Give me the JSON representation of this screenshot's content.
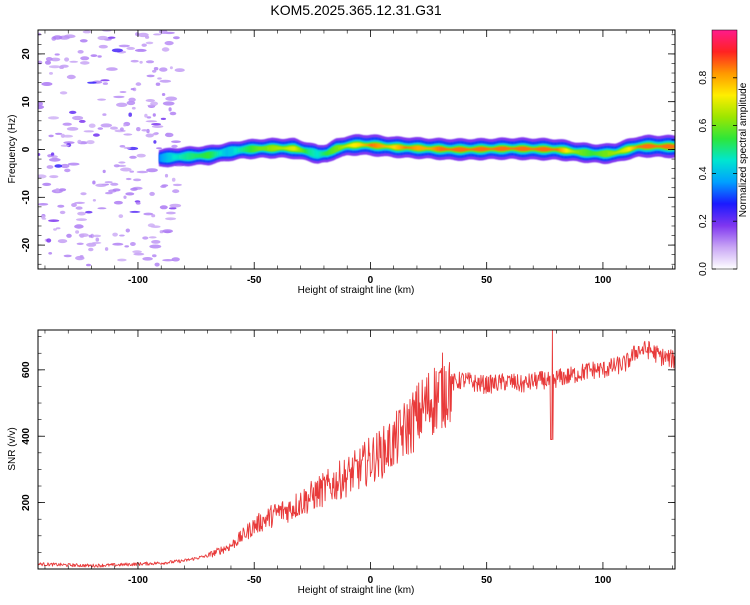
{
  "chart_data": [
    {
      "type": "heatmap",
      "title": "KOM5.2025.365.12.31.G31",
      "xlabel": "Height of straight line (km)",
      "ylabel": "Frequency (Hz)",
      "xlim": [
        -143,
        131
      ],
      "ylim": [
        -25,
        25
      ],
      "xticks": [
        -100,
        -50,
        0,
        50,
        100
      ],
      "xtick_labels": [
        "-100",
        "-50",
        "0",
        "50",
        "100"
      ],
      "yticks": [
        -20,
        -10,
        0,
        10,
        20
      ],
      "ytick_labels": [
        "-20",
        "-10",
        "0",
        "10",
        "20"
      ],
      "colorbar": {
        "label": "Normalized spectral amplitude",
        "range": [
          0,
          1
        ],
        "ticks": [
          0,
          0.2,
          0.4,
          0.6,
          0.8
        ],
        "tick_labels": [
          "0.0",
          "0.2",
          "0.4",
          "0.6",
          "0.8"
        ],
        "colors": [
          "#ffffff",
          "#c9a6f5",
          "#7f36f0",
          "#1a1aff",
          "#00a0ff",
          "#00e6d0",
          "#2ee63a",
          "#9de600",
          "#ffee00",
          "#ff9900",
          "#ff2222",
          "#ff1a8c"
        ]
      },
      "noise_region": {
        "x": [
          -143,
          -82
        ],
        "y": [
          -25,
          25
        ],
        "amplitude": 0.12
      },
      "ridge": {
        "x": [
          -91,
          -85,
          -78,
          -70,
          -62,
          -55,
          -48,
          -40,
          -33,
          -27,
          -23,
          -19,
          -15,
          -10,
          -5,
          0,
          5,
          10,
          15,
          20,
          25,
          30,
          35,
          40,
          50,
          60,
          70,
          80,
          85,
          90,
          95,
          100,
          105,
          110,
          115,
          120,
          131
        ],
        "frequency": [
          -1.8,
          -1.6,
          -1.4,
          -1.2,
          -0.5,
          0.0,
          0.2,
          0.3,
          0.2,
          -0.5,
          -1.0,
          -0.8,
          0.2,
          0.8,
          1.0,
          0.9,
          0.7,
          0.5,
          0.4,
          0.3,
          0.2,
          0.1,
          0.0,
          0.0,
          0.1,
          0.2,
          0.1,
          0.0,
          -0.3,
          -0.6,
          -0.8,
          -0.9,
          -0.7,
          0.0,
          0.6,
          0.7,
          0.6
        ],
        "amplitude": [
          0.35,
          0.45,
          0.5,
          0.55,
          0.4,
          0.5,
          0.6,
          0.65,
          0.7,
          0.5,
          0.45,
          0.55,
          0.6,
          0.7,
          0.75,
          0.85,
          0.8,
          0.75,
          0.85,
          0.8,
          0.8,
          0.85,
          0.9,
          0.9,
          0.85,
          0.9,
          0.95,
          0.85,
          0.7,
          0.6,
          0.55,
          0.6,
          0.65,
          0.7,
          0.85,
          0.95,
          1.0
        ]
      }
    },
    {
      "type": "line",
      "xlabel": "Height of straight line (km)",
      "ylabel": "SNR (v/v)",
      "xlim": [
        -143,
        131
      ],
      "ylim": [
        0,
        720
      ],
      "xticks": [
        -100,
        -50,
        0,
        50,
        100
      ],
      "xtick_labels": [
        "-100",
        "-50",
        "0",
        "50",
        "100"
      ],
      "yticks": [
        200,
        400,
        600
      ],
      "ytick_labels": [
        "200",
        "400",
        "600"
      ],
      "line_color": "#e83a3a",
      "series": [
        {
          "name": "SNR",
          "x": [
            -143,
            -130,
            -120,
            -110,
            -100,
            -90,
            -80,
            -70,
            -65,
            -60,
            -55,
            -50,
            -45,
            -40,
            -35,
            -30,
            -25,
            -20,
            -15,
            -10,
            -5,
            0,
            5,
            10,
            15,
            20,
            25,
            30,
            35,
            40,
            45,
            50,
            55,
            60,
            65,
            70,
            75,
            78,
            80,
            85,
            90,
            95,
            100,
            105,
            110,
            115,
            120,
            125,
            131
          ],
          "values": [
            15,
            12,
            10,
            12,
            15,
            18,
            25,
            40,
            55,
            70,
            100,
            130,
            150,
            170,
            180,
            200,
            220,
            240,
            260,
            280,
            300,
            330,
            350,
            380,
            420,
            460,
            500,
            530,
            560,
            570,
            560,
            555,
            560,
            565,
            555,
            565,
            570,
            560,
            575,
            580,
            590,
            600,
            600,
            610,
            620,
            660,
            660,
            640,
            630
          ]
        }
      ]
    }
  ]
}
